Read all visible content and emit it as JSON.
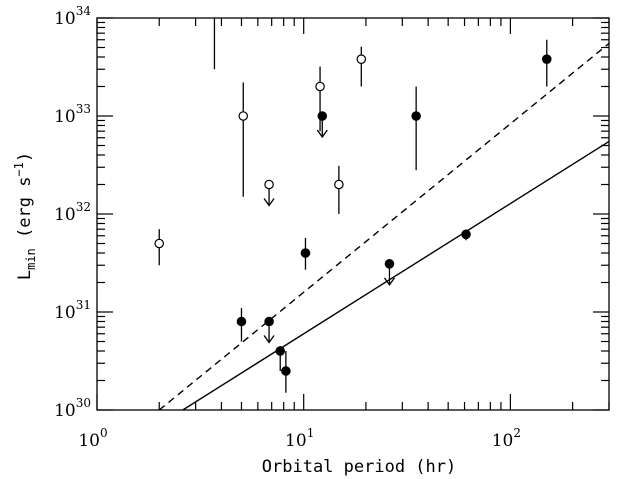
{
  "chart_data": {
    "type": "scatter",
    "title": "",
    "xlabel": "Orbital period (hr)",
    "ylabel": {
      "main": "L",
      "sub": "min",
      "rest_before_sup": " (erg s",
      "sup": "−1",
      "rest_after_sup": ")"
    },
    "x_scale": "log",
    "y_scale": "log",
    "xlim": [
      1,
      300
    ],
    "ylim": [
      1e+30,
      1e+34
    ],
    "x_ticks": [
      {
        "value": 1,
        "base": "10",
        "exp": "0"
      },
      {
        "value": 10,
        "base": "10",
        "exp": "1"
      },
      {
        "value": 100,
        "base": "10",
        "exp": "2"
      }
    ],
    "y_ticks": [
      {
        "value": 1e+30,
        "base": "10",
        "exp": "30"
      },
      {
        "value": 1e+31,
        "base": "10",
        "exp": "31"
      },
      {
        "value": 1e+32,
        "base": "10",
        "exp": "32"
      },
      {
        "value": 1e+33,
        "base": "10",
        "exp": "33"
      },
      {
        "value": 1e+34,
        "base": "10",
        "exp": "34"
      }
    ],
    "grid": false,
    "series": [
      {
        "marker": "open-circle",
        "points": [
          {
            "x": 2.0,
            "y": 5e+31,
            "ylo": 3e+31,
            "yhi": 7e+31
          },
          {
            "x": 5.1,
            "y": 1e+33,
            "ylo": 1.5e+32,
            "yhi": 2.2e+33
          },
          {
            "x": 6.8,
            "y": 2e+32,
            "upper_limit": true
          },
          {
            "x": 12.0,
            "y": 2e+33,
            "ylo": 7e+32,
            "yhi": 3.2e+33
          },
          {
            "x": 14.8,
            "y": 2e+32,
            "ylo": 1e+32,
            "yhi": 3.1e+32
          },
          {
            "x": 19.0,
            "y": 3.8e+33,
            "ylo": 2e+33,
            "yhi": 5.1e+33
          }
        ]
      },
      {
        "marker": "filled-circle",
        "points": [
          {
            "x": 5.0,
            "y": 8e+30,
            "ylo": 5e+30,
            "yhi": 1.1e+31
          },
          {
            "x": 6.8,
            "y": 8e+30,
            "upper_limit": true
          },
          {
            "x": 7.7,
            "y": 4e+30,
            "ylo": 2.5e+30,
            "yhi": 4.5e+30
          },
          {
            "x": 8.2,
            "y": 2.5e+30,
            "ylo": 1.5e+30,
            "yhi": 4e+30
          },
          {
            "x": 10.2,
            "y": 4e+31,
            "ylo": 2.7e+31,
            "yhi": 5.7e+31
          },
          {
            "x": 12.3,
            "y": 1e+33,
            "upper_limit": true
          },
          {
            "x": 26.0,
            "y": 3.1e+31,
            "upper_limit": true
          },
          {
            "x": 35.0,
            "y": 1e+33,
            "ylo": 2.8e+32,
            "yhi": 2e+33
          },
          {
            "x": 61.0,
            "y": 6.2e+31,
            "ylo": 5.4e+31,
            "yhi": 6.8e+31
          },
          {
            "x": 150.0,
            "y": 3.8e+33,
            "ylo": 2e+33,
            "yhi": 6e+33
          }
        ]
      },
      {
        "marker": "none",
        "points": [
          {
            "x": 3.7,
            "y": 1e+34,
            "ylo": 3e+33,
            "yhi": 1e+34
          }
        ]
      }
    ],
    "lines": [
      {
        "style": "solid",
        "x": [
          2.6,
          300
        ],
        "y": [
          1e+30,
          5.5e+32
        ]
      },
      {
        "style": "dashed",
        "x": [
          2.0,
          300
        ],
        "y": [
          1e+30,
          5.5e+33
        ]
      }
    ]
  }
}
